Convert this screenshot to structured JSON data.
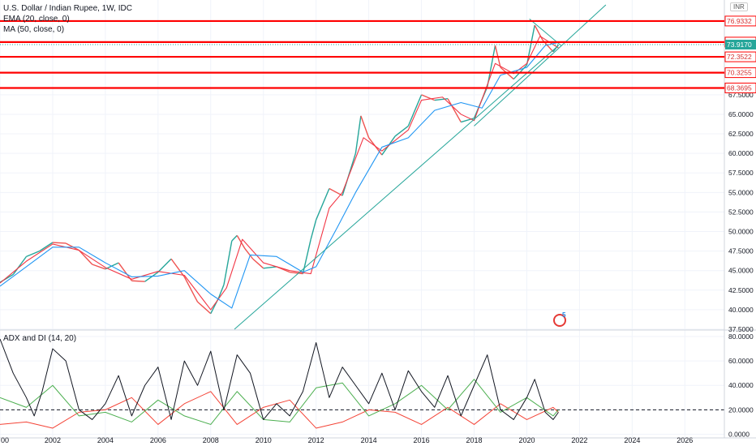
{
  "header": {
    "title": "U.S. Dollar / Indian Rupee, 1W, IDC",
    "ema_label": "EMA (20, close, 0)",
    "ma_label": "MA (50, close, 0)",
    "currency": "INR"
  },
  "indicator": {
    "title": "ADX and DI (14, 20)"
  },
  "watermark": {
    "number": "5"
  },
  "colors": {
    "price_up": "#26a69a",
    "price_down": "#ef5350",
    "ema": "#f23645",
    "ma": "#2196f3",
    "level": "#ff0000",
    "trend": "#26a69a",
    "adx": "#131722",
    "di_plus": "#4caf50",
    "di_minus": "#f44336"
  },
  "chart_data": [
    {
      "type": "line",
      "title": "U.S. Dollar / Indian Rupee, 1W, IDC",
      "x_ticks": [
        "00",
        "2002",
        "2004",
        "2006",
        "2008",
        "2010",
        "2012",
        "2014",
        "2016",
        "2018",
        "2020",
        "2022",
        "2024",
        "2026"
      ],
      "x_tick_values": [
        2000,
        2002,
        2004,
        2006,
        2008,
        2010,
        2012,
        2014,
        2016,
        2018,
        2020,
        2022,
        2024,
        2026
      ],
      "y_ticks": [
        "37.5000",
        "40.0000",
        "42.5000",
        "45.0000",
        "47.5000",
        "50.0000",
        "52.5000",
        "55.0000",
        "57.5000",
        "60.0000",
        "62.5000",
        "65.0000",
        "67.5000"
      ],
      "y_tick_values": [
        37.5,
        40,
        42.5,
        45,
        47.5,
        50,
        52.5,
        55,
        57.5,
        60,
        62.5,
        65,
        67.5
      ],
      "xlim": [
        2000,
        2027.5
      ],
      "ylim": [
        37.5,
        79
      ],
      "horizontal_levels": [
        {
          "value": 76.9332,
          "label": "76.9332"
        },
        {
          "value": 74.2371,
          "label": "74.2371"
        },
        {
          "value": 72.3522,
          "label": "72.3522"
        },
        {
          "value": 70.3255,
          "label": "70.3255"
        },
        {
          "value": 68.3695,
          "label": "68.3695"
        }
      ],
      "last_price": {
        "value": 73.917,
        "label": "73.9170"
      },
      "trendlines": [
        {
          "x": [
            2008.9,
            2021.2
          ],
          "y": [
            37.5,
            73.8
          ]
        },
        {
          "x": [
            2018.0,
            2023.0
          ],
          "y": [
            63.5,
            79
          ]
        },
        {
          "x": [
            2020.1,
            2021.3
          ],
          "y": [
            77.2,
            73.8
          ]
        }
      ],
      "series": [
        {
          "name": "price",
          "x": [
            2000.0,
            2000.5,
            2001.0,
            2001.5,
            2002.0,
            2002.5,
            2003.0,
            2003.5,
            2004.0,
            2004.5,
            2005.0,
            2005.5,
            2006.0,
            2006.5,
            2007.0,
            2007.5,
            2008.0,
            2008.3,
            2008.5,
            2008.8,
            2009.0,
            2009.3,
            2009.6,
            2010.0,
            2010.5,
            2011.0,
            2011.5,
            2011.8,
            2012.0,
            2012.5,
            2013.0,
            2013.5,
            2013.7,
            2014.0,
            2014.5,
            2015.0,
            2015.5,
            2016.0,
            2016.5,
            2017.0,
            2017.5,
            2018.0,
            2018.5,
            2018.8,
            2019.0,
            2019.5,
            2020.0,
            2020.3,
            2020.6,
            2021.0,
            2021.2
          ],
          "y": [
            43.5,
            44.5,
            46.8,
            47.5,
            48.6,
            48.5,
            47.6,
            45.8,
            45.2,
            46.0,
            43.7,
            43.6,
            44.8,
            46.5,
            44.2,
            41.0,
            39.5,
            41.5,
            43.2,
            48.8,
            49.5,
            47.8,
            46.5,
            45.3,
            45.5,
            44.8,
            44.6,
            49.0,
            51.5,
            55.5,
            54.6,
            60.0,
            64.8,
            62.0,
            59.8,
            62.2,
            63.5,
            67.5,
            66.8,
            67.0,
            64.0,
            64.5,
            68.5,
            73.8,
            71.0,
            69.5,
            71.3,
            76.4,
            74.5,
            73.0,
            73.9
          ]
        },
        {
          "name": "EMA (20, close, 0)",
          "x": [
            2000.0,
            2001.0,
            2002.0,
            2003.0,
            2004.0,
            2005.0,
            2006.0,
            2007.0,
            2008.0,
            2008.6,
            2009.2,
            2010.0,
            2011.0,
            2011.8,
            2012.5,
            2013.0,
            2013.8,
            2014.5,
            2015.5,
            2016.0,
            2016.8,
            2017.5,
            2018.0,
            2018.8,
            2019.5,
            2020.0,
            2020.5,
            2021.2
          ],
          "y": [
            43.4,
            46.2,
            48.4,
            47.6,
            45.4,
            43.9,
            44.9,
            44.4,
            40.0,
            42.8,
            49.0,
            46.0,
            45.0,
            44.6,
            53.0,
            55.0,
            62.0,
            60.3,
            63.0,
            66.8,
            67.2,
            65.0,
            64.2,
            71.5,
            70.2,
            71.5,
            75.0,
            73.5
          ]
        },
        {
          "name": "MA (50, close, 0)",
          "x": [
            2000.0,
            2001.0,
            2002.0,
            2003.0,
            2004.0,
            2005.0,
            2006.0,
            2007.0,
            2008.0,
            2008.8,
            2009.5,
            2010.5,
            2011.5,
            2012.0,
            2012.8,
            2013.5,
            2014.5,
            2015.5,
            2016.5,
            2017.5,
            2018.3,
            2019.0,
            2020.0,
            2020.7,
            2021.2
          ],
          "y": [
            43.0,
            45.5,
            48.0,
            48.0,
            46.0,
            44.2,
            44.3,
            45.0,
            42.0,
            40.2,
            47.0,
            46.8,
            44.8,
            45.5,
            50.5,
            55.0,
            60.8,
            62.0,
            65.5,
            66.5,
            65.8,
            70.0,
            71.0,
            73.8,
            74.2
          ]
        }
      ]
    },
    {
      "type": "line",
      "title": "ADX and DI (14, 20)",
      "y_ticks": [
        "0.0000",
        "20.0000",
        "40.0000",
        "60.0000",
        "80.0000"
      ],
      "y_tick_values": [
        0,
        20,
        40,
        60,
        80
      ],
      "ylim": [
        -3,
        82
      ],
      "threshold": 20,
      "series": [
        {
          "name": "ADX",
          "x": [
            2000.0,
            2000.5,
            2001.0,
            2001.3,
            2001.6,
            2002.0,
            2002.5,
            2003.0,
            2003.5,
            2004.0,
            2004.5,
            2005.0,
            2005.5,
            2006.0,
            2006.5,
            2007.0,
            2007.5,
            2008.0,
            2008.5,
            2009.0,
            2009.5,
            2010.0,
            2010.5,
            2011.0,
            2011.5,
            2012.0,
            2012.5,
            2013.0,
            2013.5,
            2014.0,
            2014.5,
            2015.0,
            2015.5,
            2016.0,
            2016.5,
            2017.0,
            2017.5,
            2018.0,
            2018.5,
            2019.0,
            2019.5,
            2020.0,
            2020.3,
            2020.7,
            2021.0,
            2021.2
          ],
          "y": [
            78,
            50,
            30,
            15,
            35,
            70,
            60,
            20,
            12,
            25,
            48,
            15,
            40,
            55,
            12,
            60,
            40,
            68,
            20,
            65,
            50,
            12,
            25,
            15,
            35,
            75,
            30,
            55,
            40,
            25,
            50,
            20,
            52,
            35,
            22,
            48,
            15,
            40,
            65,
            20,
            12,
            30,
            45,
            18,
            12,
            18
          ]
        },
        {
          "name": "DI+",
          "x": [
            2000.0,
            2001.0,
            2002.0,
            2003.0,
            2004.0,
            2005.0,
            2006.0,
            2007.0,
            2008.0,
            2009.0,
            2010.0,
            2011.0,
            2012.0,
            2013.0,
            2014.0,
            2015.0,
            2016.0,
            2017.0,
            2018.0,
            2019.0,
            2020.0,
            2021.0,
            2021.2
          ],
          "y": [
            30,
            22,
            40,
            15,
            18,
            10,
            28,
            15,
            8,
            35,
            12,
            10,
            38,
            42,
            15,
            25,
            40,
            20,
            45,
            18,
            30,
            15,
            20
          ]
        },
        {
          "name": "DI-",
          "x": [
            2000.0,
            2001.0,
            2002.0,
            2003.0,
            2004.0,
            2005.0,
            2006.0,
            2007.0,
            2008.0,
            2009.0,
            2010.0,
            2011.0,
            2012.0,
            2013.0,
            2014.0,
            2015.0,
            2016.0,
            2017.0,
            2018.0,
            2019.0,
            2020.0,
            2021.0,
            2021.2
          ],
          "y": [
            8,
            10,
            5,
            18,
            20,
            30,
            8,
            25,
            35,
            8,
            22,
            28,
            5,
            10,
            20,
            18,
            8,
            22,
            8,
            25,
            12,
            22,
            18
          ]
        }
      ]
    }
  ]
}
